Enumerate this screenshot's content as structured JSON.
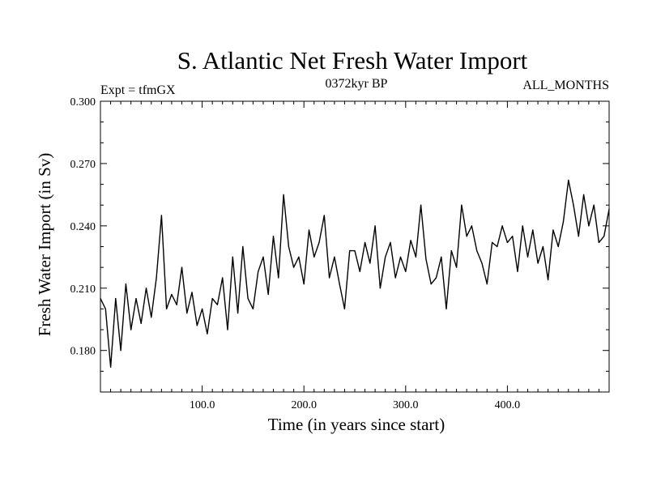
{
  "chart_data": {
    "type": "line",
    "title": "S. Atlantic Net Fresh Water Import",
    "subtitle_left": "Expt = tfmGX",
    "subtitle_center": "0372kyr BP",
    "subtitle_right": "ALL_MONTHS",
    "xlabel": "Time (in years since start)",
    "ylabel": "Fresh Water Import (in Sv)",
    "xlim": [
      0,
      500
    ],
    "ylim": [
      0.16,
      0.3
    ],
    "x_ticks": [
      100,
      200,
      300,
      400
    ],
    "x_tick_labels": [
      "100.0",
      "200.0",
      "300.0",
      "400.0"
    ],
    "y_ticks": [
      0.18,
      0.21,
      0.24,
      0.27,
      0.3
    ],
    "y_tick_labels": [
      "0.180",
      "0.210",
      "0.240",
      "0.270",
      "0.300"
    ],
    "grid": false,
    "legend": "none",
    "line_color": "#000000",
    "series": [
      {
        "x": [
          0,
          5,
          10,
          15,
          20,
          25,
          30,
          35,
          40,
          45,
          50,
          55,
          60,
          65,
          70,
          75,
          80,
          85,
          90,
          95,
          100,
          105,
          110,
          115,
          120,
          125,
          130,
          135,
          140,
          145,
          150,
          155,
          160,
          165,
          170,
          175,
          180,
          185,
          190,
          195,
          200,
          205,
          210,
          215,
          220,
          225,
          230,
          235,
          240,
          245,
          250,
          255,
          260,
          265,
          270,
          275,
          280,
          285,
          290,
          295,
          300,
          305,
          310,
          315,
          320,
          325,
          330,
          335,
          340,
          345,
          350,
          355,
          360,
          365,
          370,
          375,
          380,
          385,
          390,
          395,
          400,
          405,
          410,
          415,
          420,
          425,
          430,
          435,
          440,
          445,
          450,
          455,
          460,
          465,
          470,
          475,
          480,
          485,
          490,
          495,
          500
        ],
        "values": [
          0.205,
          0.2,
          0.172,
          0.205,
          0.18,
          0.212,
          0.19,
          0.205,
          0.193,
          0.21,
          0.196,
          0.215,
          0.245,
          0.2,
          0.207,
          0.202,
          0.22,
          0.198,
          0.208,
          0.192,
          0.2,
          0.188,
          0.205,
          0.202,
          0.215,
          0.19,
          0.225,
          0.198,
          0.23,
          0.205,
          0.2,
          0.218,
          0.225,
          0.207,
          0.235,
          0.215,
          0.255,
          0.23,
          0.22,
          0.225,
          0.212,
          0.238,
          0.225,
          0.232,
          0.245,
          0.215,
          0.225,
          0.212,
          0.2,
          0.228,
          0.228,
          0.218,
          0.232,
          0.222,
          0.24,
          0.21,
          0.225,
          0.232,
          0.215,
          0.225,
          0.218,
          0.233,
          0.225,
          0.25,
          0.224,
          0.212,
          0.215,
          0.225,
          0.2,
          0.228,
          0.22,
          0.25,
          0.235,
          0.24,
          0.228,
          0.222,
          0.212,
          0.232,
          0.23,
          0.24,
          0.232,
          0.235,
          0.218,
          0.24,
          0.225,
          0.238,
          0.222,
          0.23,
          0.214,
          0.238,
          0.23,
          0.242,
          0.262,
          0.25,
          0.235,
          0.255,
          0.24,
          0.25,
          0.232,
          0.235,
          0.248
        ]
      }
    ]
  }
}
